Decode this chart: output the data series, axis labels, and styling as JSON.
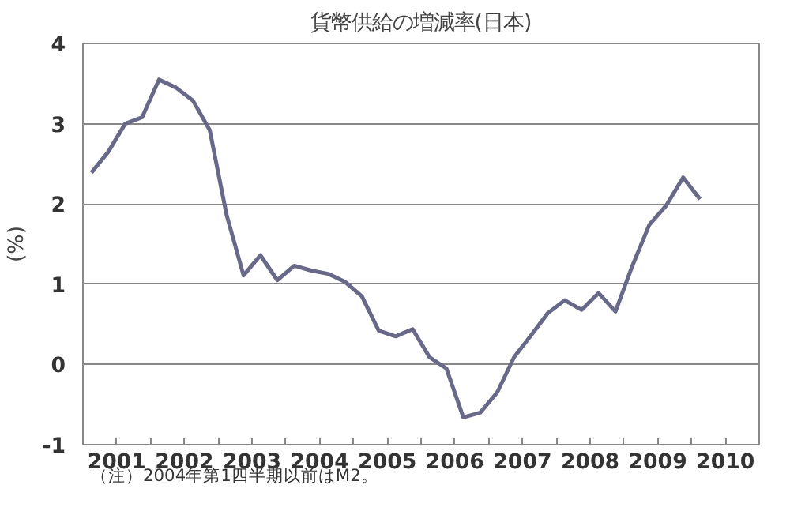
{
  "chart_data": {
    "type": "line",
    "title": "貨幣供給の増減率(日本)",
    "ylabel": "(%)",
    "annotations": [
      "（注）2004年第1四半期以前はM2。"
    ],
    "x": [
      2001,
      2001.25,
      2001.5,
      2001.75,
      2002,
      2002.25,
      2002.5,
      2002.75,
      2003,
      2003.25,
      2003.5,
      2003.75,
      2004,
      2004.25,
      2004.5,
      2004.75,
      2005,
      2005.25,
      2005.5,
      2005.75,
      2006,
      2006.25,
      2006.5,
      2006.75,
      2007,
      2007.25,
      2007.5,
      2007.75,
      2008,
      2008.25,
      2008.5,
      2008.75,
      2009,
      2009.25,
      2009.5,
      2009.75,
      2010
    ],
    "series": [
      {
        "color": "#686888",
        "values": [
          2.39,
          2.65,
          3.0,
          3.08,
          3.55,
          3.45,
          3.29,
          2.92,
          1.86,
          1.11,
          1.36,
          1.05,
          1.23,
          1.17,
          1.13,
          1.03,
          0.85,
          0.42,
          0.35,
          0.44,
          0.09,
          -0.05,
          -0.66,
          -0.6,
          -0.35,
          0.09,
          0.36,
          0.64,
          0.8,
          0.68,
          0.89,
          0.66,
          1.23,
          1.74,
          1.98,
          2.33,
          2.06
        ]
      }
    ],
    "xlim": [
      2000.875,
      2010.875
    ],
    "xticks": [
      {
        "value": 2001.375,
        "label": "2001"
      },
      {
        "value": 2002.375,
        "label": "2002"
      },
      {
        "value": 2003.375,
        "label": "2003"
      },
      {
        "value": 2004.375,
        "label": "2004"
      },
      {
        "value": 2005.375,
        "label": "2005"
      },
      {
        "value": 2006.375,
        "label": "2006"
      },
      {
        "value": 2007.375,
        "label": "2007"
      },
      {
        "value": 2008.375,
        "label": "2008"
      },
      {
        "value": 2009.375,
        "label": "2009"
      },
      {
        "value": 2010.375,
        "label": "2010"
      },
      {
        "value": 2001.875,
        "label": null
      },
      {
        "value": 2002.875,
        "label": null
      },
      {
        "value": 2003.875,
        "label": null
      },
      {
        "value": 2004.875,
        "label": null
      },
      {
        "value": 2005.875,
        "label": null
      },
      {
        "value": 2006.875,
        "label": null
      },
      {
        "value": 2007.875,
        "label": null
      },
      {
        "value": 2008.875,
        "label": null
      },
      {
        "value": 2009.875,
        "label": null
      }
    ],
    "ylim": [
      -1,
      4
    ],
    "yticks": [
      -1,
      0,
      1,
      2,
      3,
      4
    ],
    "grid": "y",
    "line_style": "solid"
  }
}
